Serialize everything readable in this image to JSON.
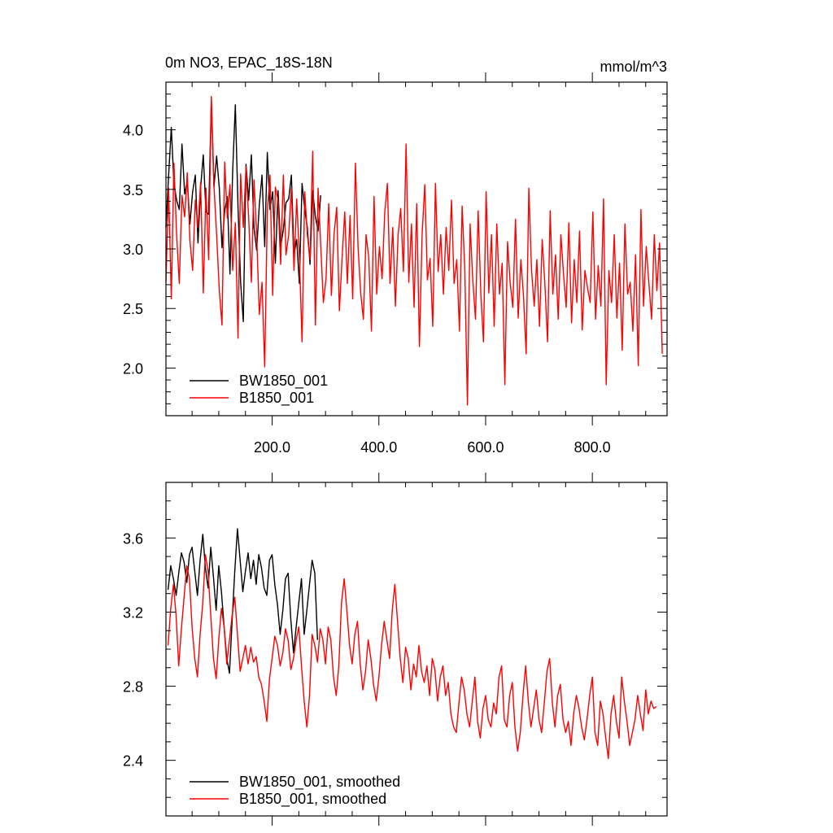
{
  "chart_data": [
    {
      "type": "line",
      "title": "0m NO3, EPAC_18S-18N",
      "units_label": "mmol/m^3",
      "xlim": [
        1,
        940
      ],
      "ylim": [
        1.6,
        4.4
      ],
      "x_ticks": [
        200,
        400,
        600,
        800
      ],
      "x_tick_labels": [
        "200.0",
        "400.0",
        "600.0",
        "800.0"
      ],
      "x_minor_step": 50,
      "y_ticks": [
        2.0,
        2.5,
        3.0,
        3.5,
        4.0
      ],
      "y_tick_labels": [
        "2.0",
        "2.5",
        "3.0",
        "3.5",
        "4.0"
      ],
      "y_minor_step": 0.1,
      "series": [
        {
          "name": "BW1850_001",
          "color": "#000000",
          "x_start": 1,
          "step": 5,
          "values": [
            3.18,
            3.62,
            4.02,
            3.55,
            3.41,
            3.33,
            3.88,
            3.46,
            3.57,
            3.21,
            3.48,
            3.62,
            3.05,
            3.51,
            3.79,
            3.31,
            3.29,
            4.25,
            3.52,
            3.78,
            3.51,
            3.01,
            3.32,
            3.44,
            2.79,
            3.65,
            4.21,
            3.35,
            2.72,
            2.39,
            3.71,
            3.41,
            3.79,
            3.18,
            2.99,
            3.37,
            3.62,
            3.02,
            3.81,
            3.33,
            3.48,
            2.88,
            3.49,
            3.02,
            3.16,
            3.39,
            3.42,
            3.62,
            2.95,
            3.08,
            2.71,
            3.55,
            3.33,
            3.18,
            2.87,
            3.49,
            3.27,
            3.15,
            3.45
          ]
        },
        {
          "name": "B1850_001",
          "color": "#ff0000",
          "x_start": 1,
          "step": 5,
          "values": [
            2.72,
            3.51,
            2.58,
            3.72,
            3.12,
            2.71,
            3.45,
            3.27,
            3.64,
            3.07,
            2.82,
            3.41,
            3.18,
            3.56,
            2.63,
            3.51,
            2.91,
            4.28,
            3.53,
            3.12,
            2.65,
            2.36,
            3.73,
            3.26,
            3.54,
            2.82,
            3.22,
            2.25,
            3.63,
            3.18,
            3.69,
            3.26,
            2.72,
            3.58,
            3.12,
            2.45,
            2.72,
            2.01,
            3.31,
            3.62,
            2.61,
            3.52,
            3.41,
            2.87,
            3.62,
            2.95,
            3.12,
            3.51,
            2.82,
            3.42,
            2.95,
            2.22,
            3.48,
            3.12,
            2.91,
            3.82,
            2.36,
            3.51,
            3.04,
            2.55,
            2.75,
            3.38,
            2.61,
            3.12,
            3.35,
            2.48,
            2.92,
            3.31,
            2.71,
            3.28,
            2.58,
            3.72,
            3.01,
            2.63,
            2.41,
            3.12,
            2.93,
            2.31,
            3.44,
            2.62,
            3.02,
            2.75,
            3.31,
            3.55,
            2.71,
            3.18,
            2.52,
            3.12,
            3.34,
            2.81,
            3.88,
            2.72,
            3.21,
            2.51,
            3.38,
            2.18,
            3.12,
            3.54,
            2.74,
            2.92,
            2.35,
            3.55,
            2.81,
            3.12,
            2.62,
            3.18,
            2.82,
            3.41,
            2.71,
            2.91,
            2.31,
            3.36,
            2.82,
            1.69,
            3.21,
            2.74,
            2.41,
            3.32,
            2.62,
            2.22,
            3.48,
            2.63,
            3.12,
            2.35,
            3.21,
            2.62,
            2.88,
            1.86,
            3.06,
            2.72,
            2.51,
            3.25,
            2.42,
            2.91,
            2.61,
            2.12,
            3.51,
            2.82,
            2.52,
            2.91,
            2.35,
            3.08,
            2.71,
            2.22,
            3.32,
            2.62,
            2.95,
            2.41,
            3.12,
            2.79,
            2.51,
            3.22,
            2.38,
            2.91,
            2.55,
            3.15,
            2.32,
            2.82,
            2.67,
            2.55,
            3.31,
            2.41,
            2.86,
            2.52,
            3.42,
            1.86,
            2.82,
            2.55,
            3.12,
            2.42,
            2.88,
            2.15,
            3.21,
            2.62,
            2.72,
            2.31,
            2.95,
            2.02,
            3.33,
            2.52,
            3.02,
            2.71,
            2.41,
            3.12,
            2.65,
            3.05,
            2.12
          ]
        }
      ],
      "legend": {
        "position": "bottom-left",
        "entries": [
          "BW1850_001",
          "B1850_001"
        ]
      }
    },
    {
      "type": "line",
      "title": "",
      "xlim": [
        1,
        940
      ],
      "ylim": [
        2.1,
        3.9
      ],
      "x_ticks": [
        200,
        400,
        600,
        800
      ],
      "x_tick_labels": [],
      "x_minor_step": 50,
      "y_ticks": [
        2.4,
        2.8,
        3.2,
        3.6
      ],
      "y_tick_labels": [
        "2.4",
        "2.8",
        "3.2",
        "3.6"
      ],
      "y_minor_step": 0.1,
      "series": [
        {
          "name": "BW1850_001, smoothed",
          "color": "#000000",
          "x_start": 5,
          "step": 5,
          "values": [
            3.32,
            3.45,
            3.38,
            3.29,
            3.41,
            3.52,
            3.47,
            3.36,
            3.51,
            3.55,
            3.42,
            3.29,
            3.48,
            3.62,
            3.44,
            3.33,
            3.55,
            3.39,
            3.21,
            3.45,
            3.31,
            3.12,
            2.95,
            2.87,
            3.15,
            3.42,
            3.65,
            3.48,
            3.31,
            3.42,
            3.52,
            3.38,
            3.48,
            3.35,
            3.51,
            3.44,
            3.33,
            3.29,
            3.48,
            3.51,
            3.35,
            3.24,
            3.08,
            3.21,
            3.38,
            3.41,
            3.16,
            2.98,
            3.12,
            3.25,
            3.38,
            3.08,
            3.21,
            3.35,
            3.48,
            3.41,
            3.05
          ]
        },
        {
          "name": "B1850_001, smoothed",
          "color": "#ff0000",
          "x_start": 5,
          "step": 5,
          "values": [
            3.02,
            3.22,
            3.35,
            3.18,
            2.91,
            3.11,
            3.28,
            3.45,
            3.38,
            3.12,
            2.95,
            2.85,
            3.08,
            3.25,
            3.51,
            3.42,
            3.18,
            2.95,
            2.84,
            3.05,
            3.22,
            3.12,
            2.92,
            3.05,
            3.18,
            3.28,
            3.08,
            2.88,
            2.95,
            3.02,
            2.92,
            3.01,
            2.93,
            2.96,
            2.85,
            2.81,
            2.72,
            2.61,
            2.84,
            2.95,
            3.07,
            3.02,
            2.91,
            2.98,
            3.11,
            3.05,
            2.89,
            2.95,
            3.05,
            3.12,
            2.91,
            2.72,
            2.58,
            2.75,
            3.08,
            3.02,
            2.93,
            3.11,
            3.05,
            2.92,
            3.12,
            3.05,
            2.85,
            2.75,
            2.91,
            3.25,
            3.38,
            3.21,
            3.02,
            2.92,
            3.08,
            3.15,
            2.92,
            2.78,
            2.88,
            3.05,
            2.95,
            2.81,
            2.72,
            2.85,
            3.02,
            3.15,
            3.05,
            2.95,
            3.21,
            3.35,
            3.15,
            2.95,
            2.82,
            3.01,
            2.95,
            2.78,
            2.92,
            2.85,
            3.02,
            2.88,
            2.82,
            2.91,
            2.75,
            2.95,
            2.89,
            2.72,
            2.85,
            2.91,
            2.75,
            2.82,
            2.65,
            2.58,
            2.55,
            2.71,
            2.85,
            2.78,
            2.65,
            2.58,
            2.72,
            2.85,
            2.61,
            2.52,
            2.68,
            2.75,
            2.62,
            2.58,
            2.71,
            2.65,
            2.85,
            2.91,
            2.62,
            2.58,
            2.75,
            2.82,
            2.58,
            2.45,
            2.55,
            2.75,
            2.91,
            2.72,
            2.58,
            2.68,
            2.78,
            2.62,
            2.55,
            2.71,
            2.88,
            2.95,
            2.71,
            2.58,
            2.75,
            2.81,
            2.62,
            2.55,
            2.61,
            2.48,
            2.65,
            2.75,
            2.68,
            2.58,
            2.51,
            2.62,
            2.75,
            2.85,
            2.55,
            2.48,
            2.72,
            2.65,
            2.52,
            2.41,
            2.65,
            2.75,
            2.61,
            2.52,
            2.85,
            2.72,
            2.61,
            2.48,
            2.55,
            2.62,
            2.75,
            2.65,
            2.56,
            2.78,
            2.65,
            2.72,
            2.68,
            2.69
          ]
        }
      ],
      "legend": {
        "position": "bottom-left",
        "entries": [
          "BW1850_001, smoothed",
          "B1850_001, smoothed"
        ]
      }
    }
  ]
}
